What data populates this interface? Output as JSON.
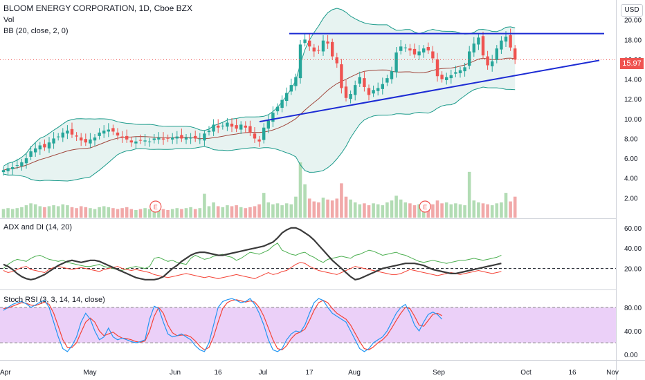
{
  "header": {
    "title": "BLOOM ENERGY CORPORATION, 1D, Cboe BZX",
    "volume_label": "Vol",
    "bb_label": "BB (20, close, 2, 0)",
    "currency": "USD",
    "last_price": "15.97"
  },
  "colors": {
    "up": "#26a69a",
    "down": "#ef5350",
    "bb_band": "#1a9a8a",
    "bb_basis": "#a0463c",
    "bb_fill": "#e3f1ef",
    "trendline": "#1c2bd4",
    "adx": "#3a3a3a",
    "di_plus": "#4caf50",
    "di_minus": "#f44336",
    "stoch_k": "#2196f3",
    "stoch_d": "#f44336",
    "stoch_band": "#e7c8f7"
  },
  "chart_data": [
    {
      "type": "candlestick",
      "title": "BLOOM ENERGY CORPORATION, 1D, Cboe BZX",
      "x_ticks": [
        "Apr",
        "May",
        "Jun",
        "16",
        "Jul",
        "17",
        "Aug",
        "Sep",
        "Oct",
        "16",
        "Nov"
      ],
      "y_ticks": [
        "2.00",
        "4.00",
        "6.00",
        "8.00",
        "10.00",
        "12.00",
        "14.00",
        "16.00",
        "18.00",
        "20.00"
      ],
      "ylim": [
        0,
        22
      ],
      "last_price": 15.97,
      "closes": [
        4.8,
        5.0,
        5.1,
        5.3,
        5.6,
        6.0,
        6.7,
        7.0,
        7.3,
        7.1,
        7.6,
        8.0,
        8.2,
        8.6,
        8.8,
        8.4,
        8.2,
        7.8,
        7.6,
        7.9,
        8.1,
        8.6,
        8.8,
        8.9,
        8.7,
        8.3,
        8.1,
        7.9,
        7.6,
        7.7,
        7.8,
        7.8,
        7.7,
        8.0,
        8.1,
        7.9,
        8.0,
        8.1,
        8.2,
        8.0,
        8.1,
        8.1,
        8.0,
        7.9,
        8.5,
        8.8,
        9.4,
        9.1,
        9.3,
        9.6,
        9.2,
        9.0,
        9.4,
        9.1,
        8.6,
        8.0,
        7.7,
        9.1,
        9.8,
        10.6,
        11.2,
        11.9,
        12.6,
        13.4,
        14.2,
        17.5,
        18.0,
        17.3,
        16.8,
        16.9,
        17.9,
        17.6,
        16.3,
        15.6,
        13.1,
        12.1,
        12.5,
        13.4,
        14.2,
        13.2,
        12.4,
        12.9,
        13.1,
        13.5,
        14.1,
        14.8,
        16.7,
        17.3,
        17.2,
        16.9,
        16.5,
        16.8,
        17.1,
        16.9,
        16.1,
        14.3,
        14.0,
        14.2,
        14.4,
        14.7,
        14.9,
        15.2,
        16.8,
        17.6,
        18.2,
        16.4,
        15.4,
        15.8,
        17.1,
        17.9,
        18.3,
        17.2,
        15.97
      ]
    },
    {
      "type": "bar",
      "title": "Vol",
      "values": [
        0.9,
        1.0,
        0.9,
        1.0,
        1.1,
        1.3,
        1.5,
        1.4,
        1.2,
        1.1,
        1.2,
        1.3,
        1.2,
        1.4,
        1.3,
        1.1,
        1.0,
        1.2,
        1.1,
        1.0,
        0.9,
        1.1,
        1.2,
        1.1,
        1.0,
        0.9,
        1.0,
        1.1,
        0.9,
        0.8,
        0.9,
        1.0,
        0.9,
        1.0,
        0.8,
        0.9,
        0.8,
        0.9,
        1.0,
        0.9,
        1.0,
        1.1,
        0.9,
        1.0,
        2.5,
        1.2,
        1.6,
        1.2,
        1.1,
        1.3,
        1.2,
        1.3,
        1.1,
        1.0,
        1.1,
        1.2,
        1.4,
        2.6,
        1.6,
        1.4,
        1.5,
        1.3,
        1.5,
        1.4,
        2.2,
        5.8,
        3.5,
        2.0,
        1.7,
        1.6,
        2.1,
        1.9,
        1.8,
        2.0,
        3.6,
        2.2,
        1.9,
        1.6,
        1.4,
        1.5,
        1.3,
        1.5,
        1.4,
        1.3,
        1.6,
        1.8,
        2.3,
        1.9,
        1.6,
        1.5,
        1.3,
        1.4,
        1.3,
        1.2,
        1.4,
        1.8,
        1.5,
        1.6,
        1.4,
        1.5,
        1.4,
        1.3,
        4.8,
        1.8,
        1.6,
        1.5,
        1.4,
        1.3,
        1.5,
        1.6,
        2.6,
        1.7,
        2.2
      ],
      "earnings_markers": [
        "E",
        "E"
      ]
    },
    {
      "type": "line",
      "title": "ADX and DI (14, 20)",
      "y_ticks": [
        "20.00",
        "40.00",
        "60.00"
      ],
      "ylim": [
        0,
        68
      ],
      "reference_line": 20,
      "series": [
        {
          "name": "ADX",
          "values": [
            24,
            22,
            19,
            15,
            12,
            10,
            9,
            10,
            12,
            14,
            17,
            20,
            23,
            25,
            27,
            28,
            27,
            26,
            27,
            28,
            28,
            27,
            25,
            23,
            21,
            19,
            17,
            15,
            13,
            11,
            10,
            9,
            9,
            9,
            10,
            12,
            16,
            20,
            23,
            27,
            30,
            33,
            35,
            36,
            36,
            35,
            34,
            33,
            33,
            34,
            35,
            36,
            37,
            38,
            39,
            40,
            41,
            42,
            44,
            46,
            50,
            55,
            58,
            60,
            60,
            58,
            55,
            52,
            48,
            43,
            38,
            33,
            28,
            24,
            20,
            16,
            12,
            9,
            10,
            12,
            14,
            16,
            18,
            20,
            21,
            22,
            23,
            24,
            25,
            25,
            25,
            24,
            23,
            21,
            19,
            18,
            17,
            16,
            15,
            15,
            16,
            17,
            18,
            19,
            20,
            21,
            22,
            23,
            24,
            25
          ]
        },
        {
          "name": "+DI",
          "values": [
            20,
            24,
            27,
            29,
            28,
            27,
            30,
            32,
            33,
            31,
            29,
            28,
            27,
            28,
            26,
            25,
            24,
            23,
            22,
            22,
            23,
            24,
            22,
            21,
            20,
            19,
            18,
            20,
            21,
            22,
            21,
            20,
            22,
            30,
            31,
            29,
            27,
            28,
            26,
            25,
            24,
            30,
            33,
            31,
            29,
            30,
            32,
            33,
            34,
            32,
            31,
            28,
            30,
            33,
            36,
            35,
            34,
            36,
            38,
            42,
            45,
            38,
            36,
            34,
            33,
            35,
            36,
            33,
            31,
            28,
            26,
            29,
            30,
            31,
            32,
            31,
            30,
            33,
            34,
            36,
            38,
            37,
            35,
            33,
            34,
            35,
            36,
            34,
            33,
            31,
            29,
            27,
            26,
            27,
            28,
            27,
            26,
            25,
            26,
            27,
            28,
            28,
            29,
            30,
            29,
            28,
            29,
            30,
            31,
            33
          ]
        },
        {
          "name": "-DI",
          "values": [
            18,
            16,
            17,
            19,
            21,
            22,
            19,
            18,
            17,
            16,
            19,
            21,
            22,
            21,
            20,
            19,
            20,
            21,
            20,
            19,
            18,
            17,
            19,
            20,
            21,
            22,
            20,
            19,
            18,
            19,
            18,
            17,
            16,
            14,
            13,
            12,
            11,
            12,
            13,
            14,
            15,
            14,
            13,
            12,
            11,
            12,
            11,
            10,
            11,
            12,
            13,
            14,
            13,
            12,
            11,
            10,
            12,
            14,
            16,
            14,
            15,
            17,
            18,
            21,
            24,
            26,
            25,
            22,
            20,
            18,
            17,
            16,
            15,
            14,
            16,
            18,
            20,
            22,
            21,
            20,
            19,
            18,
            17,
            16,
            15,
            14,
            14,
            15,
            17,
            19,
            18,
            17,
            16,
            15,
            14,
            13,
            14,
            15,
            16,
            15,
            14,
            15,
            16,
            17,
            18,
            17,
            16,
            15,
            16,
            17
          ]
        }
      ]
    },
    {
      "type": "line",
      "title": "Stoch RSI (3, 3, 14, 14, close)",
      "y_ticks": [
        "0.00",
        "40.00",
        "80.00"
      ],
      "ylim": [
        -8,
        108
      ],
      "upper_band": 80,
      "lower_band": 20,
      "series": [
        {
          "name": "K",
          "values": [
            75,
            80,
            85,
            88,
            90,
            86,
            80,
            84,
            89,
            92,
            80,
            55,
            30,
            10,
            5,
            15,
            30,
            55,
            70,
            60,
            40,
            25,
            30,
            45,
            30,
            25,
            28,
            25,
            22,
            20,
            22,
            25,
            60,
            82,
            78,
            55,
            35,
            30,
            32,
            35,
            30,
            25,
            15,
            8,
            5,
            20,
            50,
            80,
            90,
            93,
            95,
            92,
            88,
            90,
            95,
            85,
            70,
            50,
            25,
            8,
            5,
            10,
            25,
            35,
            40,
            38,
            50,
            70,
            88,
            95,
            92,
            80,
            70,
            65,
            60,
            55,
            40,
            25,
            10,
            5,
            10,
            20,
            25,
            30,
            40,
            55,
            70,
            80,
            85,
            70,
            50,
            40,
            55,
            68,
            72,
            68,
            60
          ]
        },
        {
          "name": "D",
          "values": [
            78,
            79,
            82,
            85,
            88,
            87,
            84,
            83,
            86,
            89,
            85,
            70,
            48,
            25,
            12,
            12,
            20,
            38,
            55,
            62,
            55,
            40,
            32,
            35,
            38,
            32,
            28,
            27,
            25,
            22,
            21,
            23,
            40,
            65,
            80,
            70,
            50,
            37,
            32,
            33,
            33,
            30,
            23,
            14,
            8,
            12,
            30,
            55,
            78,
            88,
            92,
            93,
            91,
            89,
            91,
            89,
            80,
            65,
            45,
            25,
            10,
            8,
            15,
            27,
            35,
            38,
            43,
            58,
            75,
            88,
            92,
            88,
            78,
            70,
            65,
            60,
            50,
            36,
            22,
            10,
            8,
            13,
            20,
            25,
            33,
            45,
            58,
            70,
            80,
            78,
            65,
            50,
            48,
            58,
            68,
            70,
            66
          ]
        }
      ]
    }
  ]
}
